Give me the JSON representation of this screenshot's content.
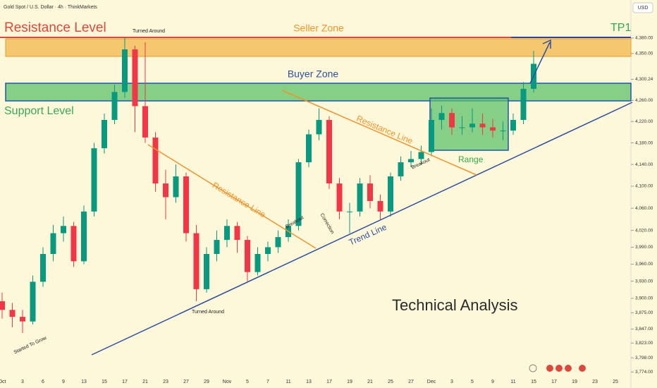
{
  "chart_data": {
    "type": "candlestick",
    "title": "Gold Spot / U.S. Dollar · 4h · ThinkMarkets",
    "currency": "USD",
    "annotations": [
      "Resistance Level",
      "Seller Zone",
      "TP1",
      "Buyer Zone",
      "Support Level",
      "Turned Around",
      "Turned Around",
      "Resistance Line",
      "Resistance Line",
      "Breakout",
      "Breakout",
      "Correction",
      "Trend Line",
      "Range",
      "Technical Analysis",
      "Started To Grow"
    ],
    "categories": [
      "Oct",
      null,
      "3",
      null,
      "6",
      null,
      "9",
      null,
      "13",
      null,
      "15",
      null,
      "17",
      null,
      "21",
      null,
      "23",
      null,
      "27",
      null,
      "29",
      null,
      "Nov",
      null,
      "5",
      null,
      "7",
      null,
      "11",
      null,
      "13",
      null,
      "17",
      null,
      "19",
      null,
      "21",
      null,
      "25",
      null,
      "27",
      null,
      "Dec",
      null,
      "3",
      null,
      "5",
      null,
      "9",
      null,
      "11",
      null,
      "15",
      null,
      "17",
      null,
      "19",
      null,
      "23",
      null,
      "25"
    ],
    "open": [
      3895,
      3880,
      3868,
      3860,
      3929,
      3978,
      4015,
      4028,
      3965,
      4054,
      4170,
      4223,
      4276,
      4358,
      4249,
      4190,
      4105,
      4080,
      4118,
      4015,
      3916,
      3978,
      4003,
      4028,
      4003,
      3946,
      3978,
      3990,
      4008,
      4028,
      4144,
      4196,
      4223,
      4105,
      4054,
      4054,
      4105,
      4073,
      4054,
      4118,
      4144,
      4150,
      4163,
      4223,
      4236,
      4209,
      4209,
      4216,
      4209,
      4203,
      4203,
      4223,
      4282,
      null,
      null,
      null,
      null,
      null,
      null,
      null,
      null
    ],
    "high": [
      3910,
      3892,
      3880,
      3940,
      3990,
      4030,
      4045,
      4035,
      4065,
      4180,
      4235,
      4290,
      4381,
      4365,
      4372,
      4200,
      4130,
      4140,
      4125,
      4030,
      3990,
      4020,
      4040,
      4035,
      4010,
      3990,
      4000,
      4020,
      4040,
      4150,
      4205,
      4245,
      4230,
      4115,
      4070,
      4115,
      4120,
      4085,
      4125,
      4155,
      4165,
      4175,
      4245,
      4250,
      4245,
      4230,
      4245,
      4235,
      4225,
      4220,
      4235,
      4295,
      4355,
      null,
      null,
      null,
      null,
      null,
      null,
      null,
      null
    ],
    "low": [
      3865,
      3850,
      3840,
      3855,
      3920,
      3965,
      4000,
      3955,
      3960,
      4045,
      4160,
      4215,
      4265,
      4200,
      4180,
      4090,
      4040,
      4070,
      4000,
      3895,
      3910,
      3965,
      3990,
      3980,
      3930,
      3940,
      3965,
      3980,
      4000,
      4020,
      4135,
      4185,
      4095,
      4040,
      4015,
      4045,
      4060,
      4040,
      4045,
      4110,
      4135,
      4140,
      4155,
      4205,
      4195,
      4195,
      4200,
      4195,
      4190,
      4185,
      4195,
      4215,
      4275,
      null,
      null,
      null,
      null,
      null,
      null,
      null,
      null
    ],
    "close": [
      3880,
      3868,
      3860,
      3929,
      3978,
      4015,
      4028,
      3965,
      4054,
      4170,
      4223,
      4276,
      4358,
      4249,
      4190,
      4105,
      4080,
      4118,
      4015,
      3916,
      3978,
      4003,
      4028,
      4003,
      3946,
      3978,
      3990,
      4008,
      4028,
      4144,
      4196,
      4223,
      4105,
      4054,
      4054,
      4105,
      4073,
      4054,
      4118,
      4144,
      4150,
      4163,
      4223,
      4236,
      4209,
      4209,
      4216,
      4209,
      4203,
      4203,
      4223,
      4282,
      4330,
      null,
      null,
      null,
      null,
      null,
      null,
      null,
      null
    ],
    "up_color": "#089981",
    "down_color": "#f23645",
    "log_scale": true,
    "grid": false,
    "ylim": [
      3759,
      4455
    ],
    "yticks": [
      {
        "value": 4380,
        "label": "4,380.00"
      },
      {
        "value": 4350,
        "label": "4,350.00"
      },
      {
        "value": 4300.24,
        "label": "4,300.24"
      },
      {
        "value": 4260,
        "label": "4,260.00"
      },
      {
        "value": 4220,
        "label": "4,220.00"
      },
      {
        "value": 4180,
        "label": "4,180.00"
      },
      {
        "value": 4140,
        "label": "4,140.00"
      },
      {
        "value": 4100,
        "label": "4,100.00"
      },
      {
        "value": 4060,
        "label": "4,060.00"
      },
      {
        "value": 4020,
        "label": "4,020.00"
      },
      {
        "value": 3990,
        "label": "3,990.00"
      },
      {
        "value": 3960,
        "label": "3,960.00"
      },
      {
        "value": 3930,
        "label": "3,930.00"
      },
      {
        "value": 3900,
        "label": "3,900.00"
      },
      {
        "value": 3875,
        "label": "3,875.00"
      },
      {
        "value": 3847,
        "label": "3,847.00"
      },
      {
        "value": 3823,
        "label": "3,823.00"
      },
      {
        "value": 3798,
        "label": "3,798.00"
      },
      {
        "value": 3774,
        "label": "3,774.00"
      }
    ]
  }
}
